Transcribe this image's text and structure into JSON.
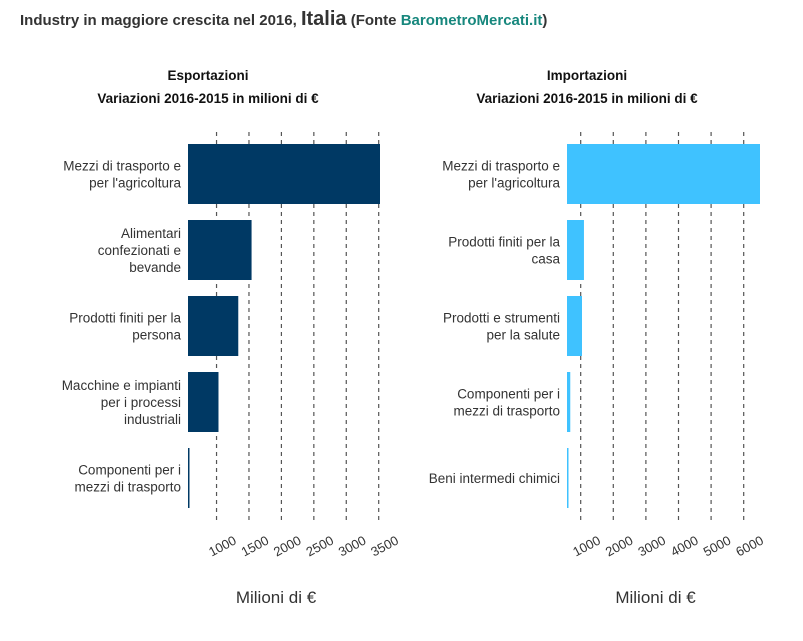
{
  "header": {
    "prefix": "Industry in maggiore crescita nel 2016, ",
    "country": "Italia",
    "fonte_open": " (Fonte ",
    "source": "BarometroMercati.it",
    "fonte_close": ")"
  },
  "colors": {
    "export": "#003964",
    "import": "#3fc2ff",
    "grid": "#555555"
  },
  "chart_data": [
    {
      "type": "bar",
      "orientation": "horizontal",
      "title_lines": [
        "Esportazioni",
        "Variazioni 2016-2015 in milioni di €"
      ],
      "xlabel": "Milioni di €",
      "categories": [
        [
          "Mezzi di trasporto e",
          "per l'agricoltura"
        ],
        [
          "Alimentari",
          "confezionati e",
          "bevande"
        ],
        [
          "Prodotti finiti per la",
          "persona"
        ],
        [
          "Macchine e impianti",
          "per i processi",
          "industriali"
        ],
        [
          "Componenti per i",
          "mezzi di trasporto"
        ]
      ],
      "values": [
        3520,
        1540,
        1335,
        1030,
        560
      ],
      "xlim": [
        560,
        3520
      ],
      "xticks": [
        1000,
        1500,
        2000,
        2500,
        3000,
        3500
      ],
      "grid": "vertical dashed"
    },
    {
      "type": "bar",
      "orientation": "horizontal",
      "title_lines": [
        "Importazioni",
        "Variazioni 2016-2015 in milioni di €"
      ],
      "xlabel": "Milioni di €",
      "categories": [
        [
          "Mezzi di trasporto e",
          "per l'agricoltura"
        ],
        [
          "Prodotti finiti per la",
          "casa"
        ],
        [
          "Prodotti e strumenti",
          "per la salute"
        ],
        [
          "Componenti per i",
          "mezzi di trasporto"
        ],
        [
          "Beni intermedi chimici"
        ]
      ],
      "values": [
        6500,
        1100,
        1040,
        680,
        600
      ],
      "xlim": [
        580,
        6500
      ],
      "xticks": [
        1000,
        2000,
        3000,
        4000,
        5000,
        6000
      ],
      "grid": "vertical dashed"
    }
  ]
}
